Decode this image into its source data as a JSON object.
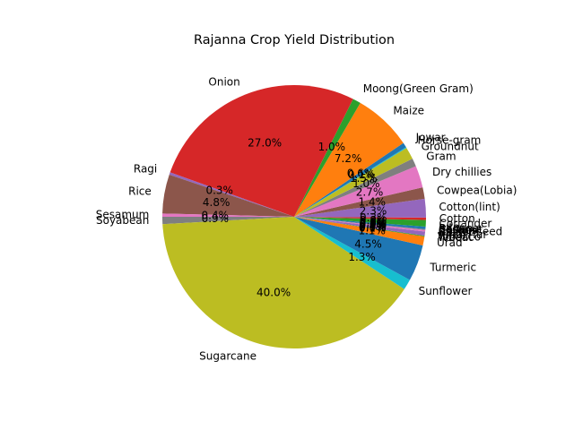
{
  "chart_data": {
    "type": "pie",
    "title": "Rajanna Crop Yield Distribution",
    "start_angle_deg": 180,
    "direction": "counterclockwise",
    "slices": [
      {
        "label": "Soyabean",
        "value": 0.9,
        "pct_label": "0.9%",
        "color": "#7f7f7f"
      },
      {
        "label": "Sugarcane",
        "value": 40.0,
        "pct_label": "40.0%",
        "color": "#bcbd22"
      },
      {
        "label": "Sunflower",
        "value": 1.3,
        "pct_label": "1.3%",
        "color": "#17becf"
      },
      {
        "label": "Turmeric",
        "value": 4.5,
        "pct_label": "4.5%",
        "color": "#1f77b4"
      },
      {
        "label": "Urad",
        "value": 1.1,
        "pct_label": "1.1%",
        "color": "#ff7f0e"
      },
      {
        "label": "Wheat",
        "value": 0.1,
        "pct_label": "0.1%",
        "color": "#2ca02c"
      },
      {
        "label": "Tobacco",
        "value": 0.0,
        "pct_label": "0.0%",
        "color": "#d62728"
      },
      {
        "label": "Arhar/Tur",
        "value": 0.5,
        "pct_label": "0.5%",
        "color": "#9467bd"
      },
      {
        "label": "Bajra",
        "value": 0.0,
        "pct_label": "0.0%",
        "color": "#8c564b"
      },
      {
        "label": "Castor seed",
        "value": 0.2,
        "pct_label": "0.2%",
        "color": "#e377c2"
      },
      {
        "label": "Chillies",
        "value": 0.1,
        "pct_label": "0.1%",
        "color": "#7f7f7f"
      },
      {
        "label": "Sesame",
        "value": 0.0,
        "pct_label": "0.0%",
        "color": "#bcbd22"
      },
      {
        "label": "Coconut",
        "value": 0.0,
        "pct_label": "0.0%",
        "color": "#17becf"
      },
      {
        "label": "Banana",
        "value": 0.3,
        "pct_label": "0.3%",
        "color": "#1f77b4"
      },
      {
        "label": "Jute",
        "value": 0.0,
        "pct_label": "0.0%",
        "color": "#ff7f0e"
      },
      {
        "label": "Coriander",
        "value": 0.8,
        "pct_label": "0.8%",
        "color": "#2ca02c"
      },
      {
        "label": "Cotton",
        "value": 0.3,
        "pct_label": "0.3%",
        "color": "#d62728"
      },
      {
        "label": "Cotton(lint)",
        "value": 2.3,
        "pct_label": "2.3%",
        "color": "#9467bd"
      },
      {
        "label": "Cowpea(Lobia)",
        "value": 1.4,
        "pct_label": "1.4%",
        "color": "#8c564b"
      },
      {
        "label": "Dry chillies",
        "value": 2.7,
        "pct_label": "2.7%",
        "color": "#e377c2"
      },
      {
        "label": "Gram",
        "value": 1.0,
        "pct_label": "1.0%",
        "color": "#7f7f7f"
      },
      {
        "label": "Groundnut",
        "value": 1.5,
        "pct_label": "1.5%",
        "color": "#bcbd22"
      },
      {
        "label": "Horse-gram",
        "value": 0.1,
        "pct_label": "0.1%",
        "color": "#17becf"
      },
      {
        "label": "Jowar",
        "value": 0.6,
        "pct_label": "0.6%",
        "color": "#1f77b4"
      },
      {
        "label": "Maize",
        "value": 7.2,
        "pct_label": "7.2%",
        "color": "#ff7f0e"
      },
      {
        "label": "Moong(Green Gram)",
        "value": 1.0,
        "pct_label": "1.0%",
        "color": "#2ca02c"
      },
      {
        "label": "Onion",
        "value": 27.0,
        "pct_label": "27.0%",
        "color": "#d62728"
      },
      {
        "label": "Ragi",
        "value": 0.3,
        "pct_label": "0.3%",
        "color": "#9467bd"
      },
      {
        "label": "Rice",
        "value": 4.8,
        "pct_label": "4.8%",
        "color": "#8c564b"
      },
      {
        "label": "Sesamum",
        "value": 0.4,
        "pct_label": "0.4%",
        "color": "#e377c2"
      }
    ]
  }
}
